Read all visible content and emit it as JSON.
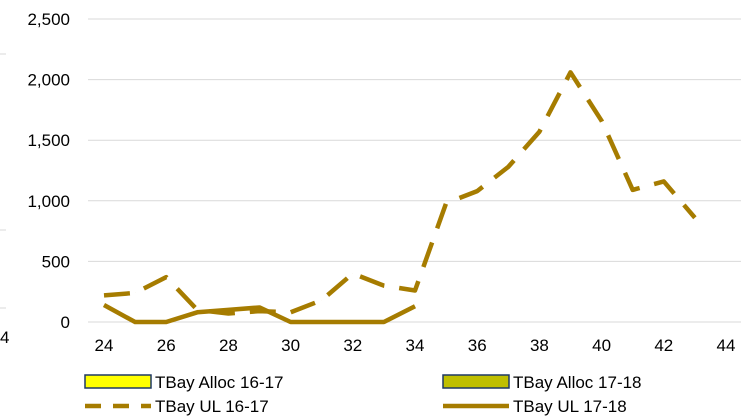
{
  "chart_data": {
    "type": "line",
    "title": "",
    "xlabel": "",
    "ylabel": "",
    "xlim": [
      24,
      44
    ],
    "ylim": [
      0,
      2500
    ],
    "x_ticks": [
      24,
      26,
      28,
      30,
      32,
      34,
      36,
      38,
      40,
      42,
      44
    ],
    "y_ticks": [
      {
        "value": 0,
        "label": "0"
      },
      {
        "value": 500,
        "label": "500"
      },
      {
        "value": 1000,
        "label": "1,000"
      },
      {
        "value": 1500,
        "label": "1,500"
      },
      {
        "value": 2000,
        "label": "2,000"
      },
      {
        "value": 2500,
        "label": "2,500"
      }
    ],
    "grid": "horizontal",
    "legend_position": "bottom",
    "left_partial_label": "4",
    "series": [
      {
        "name": "TBay Alloc 16-17",
        "kind": "bar-legend",
        "color": "#FFFF00",
        "border": "#1F3864"
      },
      {
        "name": "TBay Alloc 17-18",
        "kind": "bar-legend",
        "color": "#BFBF00",
        "border": "#1F3864"
      },
      {
        "name": "TBay UL 16-17",
        "kind": "dashed-line",
        "color": "#A67C00",
        "x": [
          24,
          25,
          26,
          27,
          28,
          29,
          30,
          31,
          32,
          33,
          34,
          35,
          36,
          37,
          38,
          39,
          40,
          41,
          42,
          43
        ],
        "y": [
          220,
          240,
          370,
          100,
          70,
          90,
          80,
          180,
          400,
          300,
          260,
          980,
          1080,
          1280,
          1570,
          2060,
          1660,
          1090,
          1160,
          860
        ]
      },
      {
        "name": "TBay UL 17-18",
        "kind": "solid-line",
        "color": "#A67C00",
        "x": [
          24,
          25,
          26,
          27,
          28,
          29,
          30,
          31,
          32,
          33,
          34
        ],
        "y": [
          140,
          0,
          0,
          80,
          100,
          120,
          0,
          0,
          0,
          0,
          130
        ]
      }
    ]
  }
}
